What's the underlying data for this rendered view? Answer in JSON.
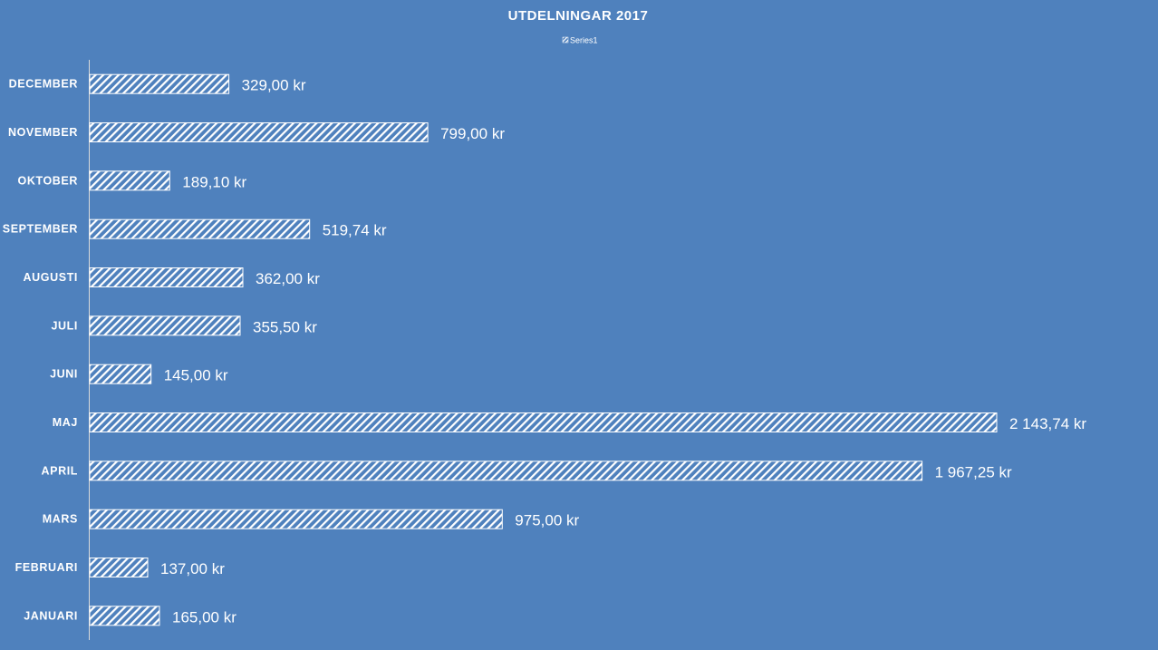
{
  "chart_data": {
    "type": "bar",
    "orientation": "horizontal",
    "title": "UTDELNINGAR 2017",
    "xlabel": "",
    "ylabel": "",
    "categories": [
      "JANUARI",
      "FEBRUARI",
      "MARS",
      "APRIL",
      "MAJ",
      "JUNI",
      "JULI",
      "AUGUSTI",
      "SEPTEMBER",
      "OKTOBER",
      "NOVEMBER",
      "DECEMBER"
    ],
    "series": [
      {
        "name": "Series1",
        "values": [
          165.0,
          137.0,
          975.0,
          1967.25,
          2143.74,
          145.0,
          355.5,
          362.0,
          519.74,
          189.1,
          799.0,
          329.0
        ],
        "data_labels": [
          "165,00 kr",
          "137,00 kr",
          "975,00 kr",
          "1 967,25 kr",
          "2 143,74 kr",
          "145,00 kr",
          "355,50 kr",
          "362,00 kr",
          "519,74 kr",
          "189,10 kr",
          "799,00 kr",
          "329,00 kr"
        ],
        "fill": "hatched-diagonal",
        "color": "#ffffff"
      }
    ],
    "xlim": [
      0,
      2143.74
    ],
    "category_order": "bottom-to-top",
    "legend": "top-center",
    "grid": false,
    "value_axis_visible": false,
    "colors": {
      "background": "#4f81bd",
      "bar": "#ffffff",
      "text": "#ffffff",
      "axis": "#d9d9d9"
    }
  }
}
